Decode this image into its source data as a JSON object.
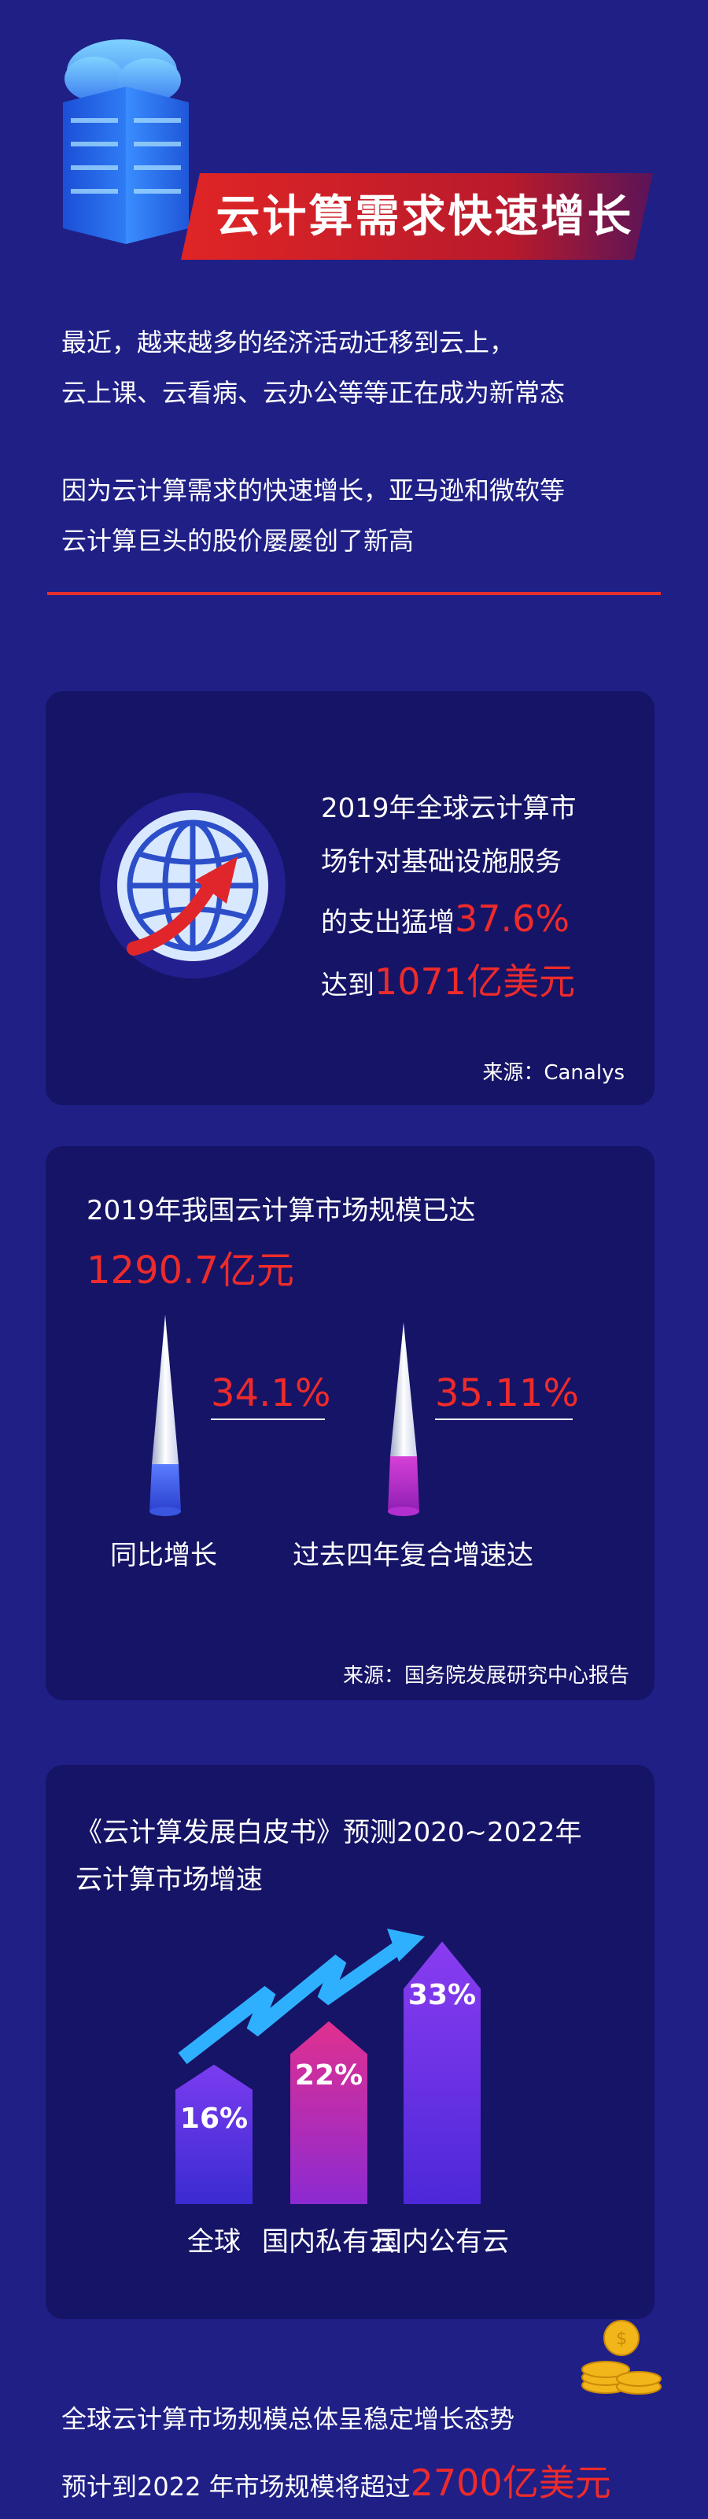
{
  "header": {
    "title": "云计算需求快速增长"
  },
  "intro": {
    "lines": [
      "最近，越来越多的经济活动迁移到云上，",
      "云上课、云看病、云办公等等正在成为新常态",
      "因为云计算需求的快速增长，亚马逊和微软等",
      "云计算巨头的股价屡屡创了新高"
    ]
  },
  "card1": {
    "line1": "2019年全球云计算市",
    "line2": "场针对基础设施服务",
    "line3_prefix": "的支出猛增",
    "line3_value": "37.6%",
    "line4_prefix": "达到",
    "line4_value": "1071亿美元",
    "source": "来源：Canalys"
  },
  "card2": {
    "heading": "2019年我国云计算市场规模已达",
    "value": "1290.7亿元",
    "items": [
      {
        "value": "34.1%",
        "label": "同比增长"
      },
      {
        "value": "35.11%",
        "label": "过去四年复合增速达"
      }
    ],
    "source": "来源：国务院发展研究中心报告"
  },
  "card3": {
    "line1": "《云计算发展白皮书》预测2020~2022年",
    "line2": "云计算市场增速",
    "bars": [
      {
        "value": "16%",
        "label": "全球",
        "percent": 16
      },
      {
        "value": "22%",
        "label": "国内私有云",
        "percent": 22
      },
      {
        "value": "33%",
        "label": "国内公有云",
        "percent": 33
      }
    ]
  },
  "footer": {
    "line1": "全球云计算市场规模总体呈稳定增长态势",
    "line2_prefix": "预计到2022 年市场规模将超过",
    "line2_value": "2700亿美元"
  },
  "colors": {
    "background": "#1f1f86",
    "card": "#161466",
    "accent_red": "#ee2b2b"
  }
}
